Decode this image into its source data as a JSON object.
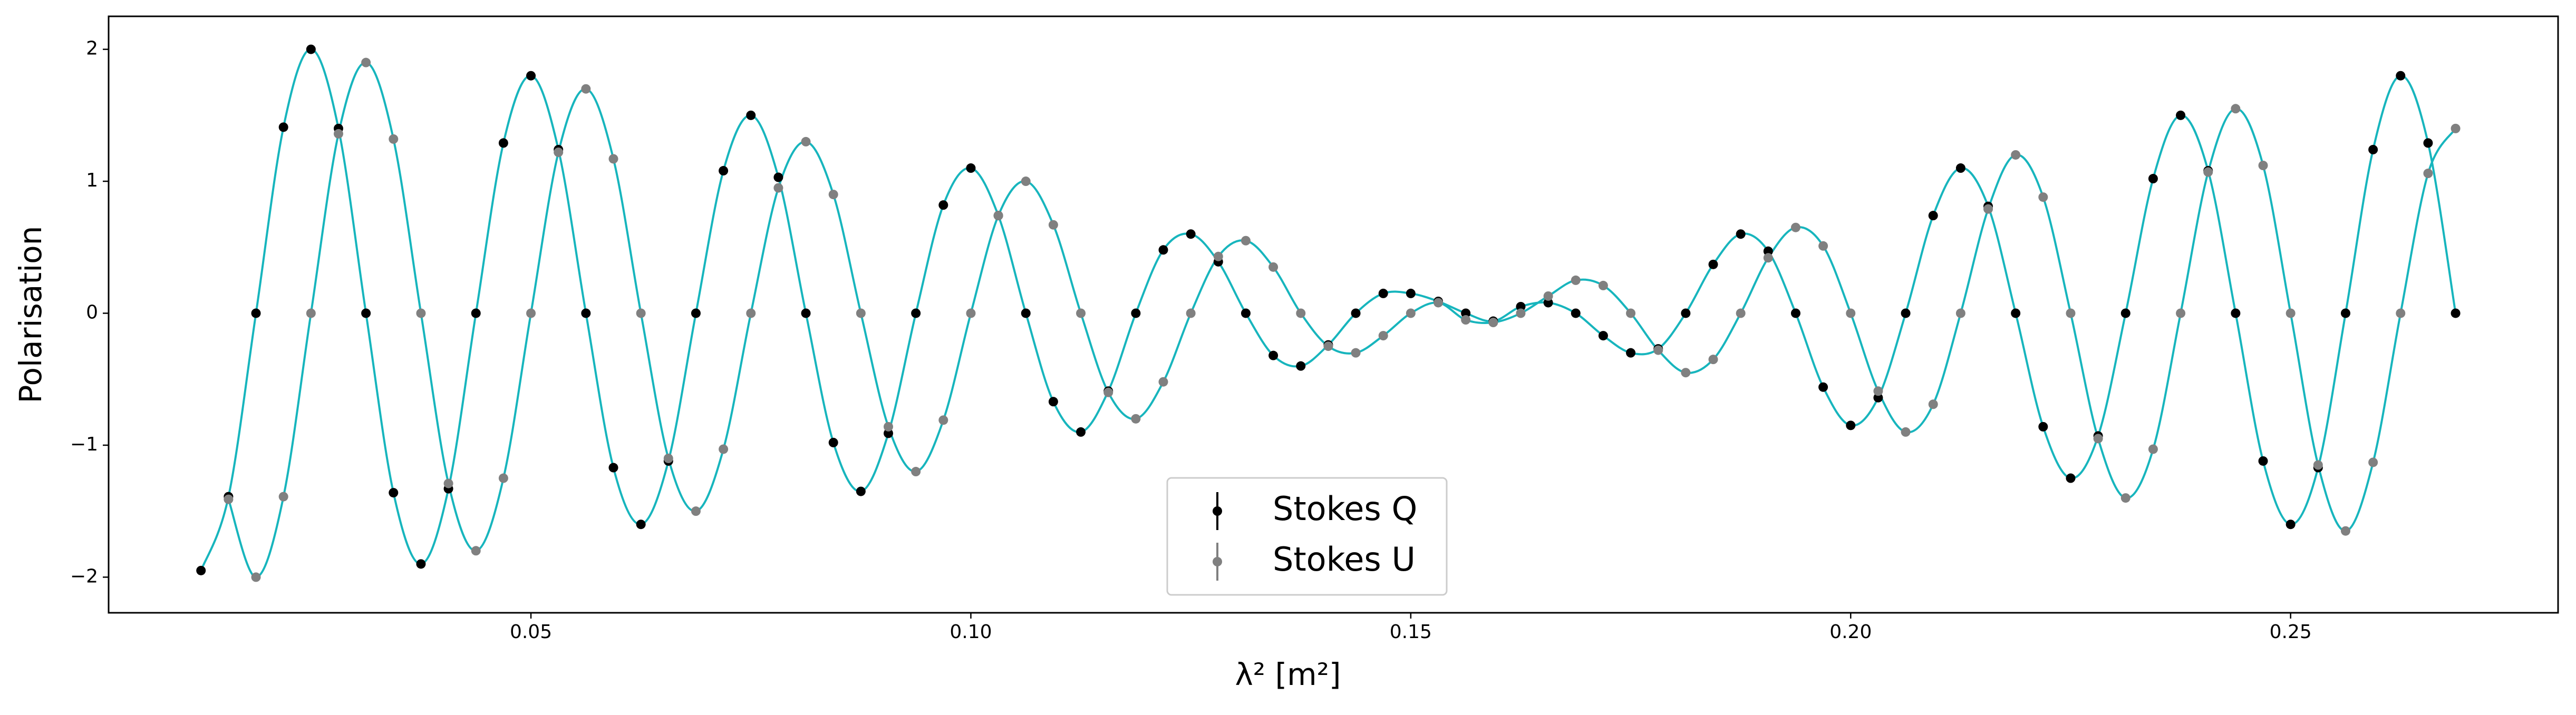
{
  "chart_data": {
    "type": "scatter",
    "xlabel": "λ² [m²]",
    "ylabel": "Polarisation",
    "xlim": [
      0.002,
      0.2804
    ],
    "ylim": [
      -2.27,
      2.25
    ],
    "xticks": [
      0.05,
      {
        "value": 0.1,
        "label": "0.10"
      },
      0.15,
      {
        "value": 0.2,
        "label": "0.20"
      },
      0.25
    ],
    "yticks": [
      {
        "value": -2,
        "label": "−2"
      },
      {
        "value": -1,
        "label": "−1"
      },
      0,
      1,
      2
    ],
    "grid": false,
    "legend": "lower center",
    "fit_color": "#17b5bd",
    "series": [
      {
        "name": "Stokes Q",
        "color": "#000000",
        "x": [
          0.0125,
          0.015625,
          0.01875,
          0.021875,
          0.025,
          0.028125,
          0.03125,
          0.034375,
          0.0375,
          0.040625,
          0.04375,
          0.046875,
          0.05,
          0.053125,
          0.05625,
          0.059375,
          0.0625,
          0.065625,
          0.06875,
          0.071875,
          0.075,
          0.078125,
          0.08125,
          0.084375,
          0.0875,
          0.090625,
          0.09375,
          0.096875,
          0.1,
          0.103125,
          0.10625,
          0.109375,
          0.1125,
          0.115625,
          0.11875,
          0.121875,
          0.125,
          0.128125,
          0.13125,
          0.134375,
          0.1375,
          0.140625,
          0.14375,
          0.146875,
          0.15,
          0.153125,
          0.15625,
          0.159375,
          0.1625,
          0.165625,
          0.16875,
          0.171875,
          0.175,
          0.178125,
          0.18125,
          0.184375,
          0.1875,
          0.190625,
          0.19375,
          0.196875,
          0.2,
          0.203125,
          0.20625,
          0.209375,
          0.2125,
          0.215625,
          0.21875,
          0.221875,
          0.225,
          0.228125,
          0.23125,
          0.234375,
          0.2375,
          0.240625,
          0.24375,
          0.246875,
          0.25,
          0.253125,
          0.25625,
          0.259375,
          0.2625,
          0.265625,
          0.26875
        ],
        "values": [
          -1.95,
          -1.39,
          0,
          1.41,
          2.0,
          1.4,
          0,
          -1.36,
          -1.9,
          -1.33,
          0,
          1.29,
          1.8,
          1.24,
          0,
          -1.17,
          -1.6,
          -1.12,
          0,
          1.08,
          1.5,
          1.03,
          0,
          -0.98,
          -1.35,
          -0.91,
          0,
          0.82,
          1.1,
          0.74,
          0,
          -0.67,
          -0.9,
          -0.59,
          0,
          0.48,
          0.6,
          0.39,
          0,
          -0.32,
          -0.4,
          -0.24,
          0,
          0.15,
          0.15,
          0.09,
          0,
          -0.06,
          0.05,
          0.08,
          0,
          -0.17,
          -0.3,
          -0.27,
          0,
          0.37,
          0.6,
          0.47,
          0,
          -0.56,
          -0.85,
          -0.64,
          0,
          0.74,
          1.1,
          0.81,
          0,
          -0.86,
          -1.25,
          -0.93,
          0,
          1.02,
          1.5,
          1.08,
          0,
          -1.12,
          -1.6,
          -1.17,
          0,
          1.24,
          1.8,
          1.29,
          0
        ]
      },
      {
        "name": "Stokes U",
        "color": "#808080",
        "x": [
          0.015625,
          0.01875,
          0.021875,
          0.025,
          0.028125,
          0.03125,
          0.034375,
          0.0375,
          0.040625,
          0.04375,
          0.046875,
          0.05,
          0.053125,
          0.05625,
          0.059375,
          0.0625,
          0.065625,
          0.06875,
          0.071875,
          0.075,
          0.078125,
          0.08125,
          0.084375,
          0.0875,
          0.090625,
          0.09375,
          0.096875,
          0.1,
          0.103125,
          0.10625,
          0.109375,
          0.1125,
          0.115625,
          0.11875,
          0.121875,
          0.125,
          0.128125,
          0.13125,
          0.134375,
          0.1375,
          0.140625,
          0.14375,
          0.146875,
          0.15,
          0.153125,
          0.15625,
          0.159375,
          0.1625,
          0.165625,
          0.16875,
          0.171875,
          0.175,
          0.178125,
          0.18125,
          0.184375,
          0.1875,
          0.190625,
          0.19375,
          0.196875,
          0.2,
          0.203125,
          0.20625,
          0.209375,
          0.2125,
          0.215625,
          0.21875,
          0.221875,
          0.225,
          0.228125,
          0.23125,
          0.234375,
          0.2375,
          0.240625,
          0.24375,
          0.246875,
          0.25,
          0.253125,
          0.25625,
          0.259375,
          0.2625,
          0.265625,
          0.26875
        ],
        "values": [
          -1.41,
          -2.0,
          -1.39,
          0,
          1.36,
          1.9,
          1.32,
          0,
          -1.29,
          -1.8,
          -1.25,
          0,
          1.22,
          1.7,
          1.17,
          0,
          -1.1,
          -1.5,
          -1.03,
          0,
          0.95,
          1.3,
          0.9,
          0,
          -0.86,
          -1.2,
          -0.81,
          0,
          0.74,
          1.0,
          0.67,
          0,
          -0.6,
          -0.8,
          -0.52,
          0,
          0.43,
          0.55,
          0.35,
          0,
          -0.25,
          -0.3,
          -0.17,
          0,
          0.08,
          -0.05,
          -0.07,
          0,
          0.13,
          0.25,
          0.21,
          0,
          -0.28,
          -0.45,
          -0.35,
          0,
          0.42,
          0.65,
          0.51,
          0,
          -0.59,
          -0.9,
          -0.69,
          0,
          0.79,
          1.2,
          0.88,
          0,
          -0.95,
          -1.4,
          -1.03,
          0,
          1.07,
          1.55,
          1.12,
          0,
          -1.15,
          -1.65,
          -1.13,
          0,
          1.06,
          1.4
        ]
      }
    ]
  }
}
